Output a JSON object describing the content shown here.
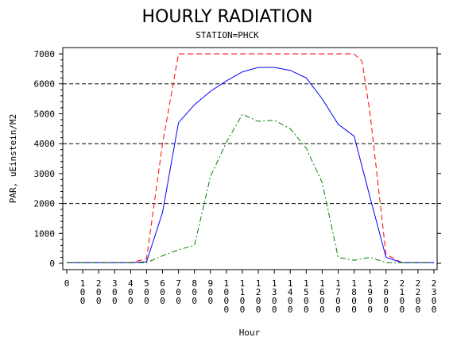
{
  "chart_data": {
    "type": "line",
    "title": "HOURLY RADIATION",
    "subtitle": "STATION=PHCK",
    "xlabel": "Hour",
    "ylabel": "PAR, uEinstein/M2",
    "xlim": [
      0,
      2300
    ],
    "ylim": [
      0,
      7000
    ],
    "x_ticks": [
      0,
      100,
      200,
      300,
      400,
      500,
      600,
      700,
      800,
      900,
      1000,
      1100,
      1200,
      1300,
      1400,
      1500,
      1600,
      1700,
      1800,
      1900,
      2000,
      2100,
      2200,
      2300
    ],
    "x_tick_labels": [
      "0",
      "100",
      "200",
      "300",
      "400",
      "500",
      "600",
      "700",
      "800",
      "900",
      "1000",
      "1100",
      "1200",
      "1300",
      "1400",
      "1500",
      "1600",
      "1700",
      "1800",
      "1900",
      "2000",
      "2100",
      "2200",
      "2300"
    ],
    "y_ticks": [
      0,
      1000,
      2000,
      3000,
      4000,
      5000,
      6000,
      7000
    ],
    "y_tick_labels": [
      "0",
      "1000",
      "2000",
      "3000",
      "4000",
      "5000",
      "6000",
      "7000"
    ],
    "reference_lines_y": [
      2000,
      4000,
      6000
    ],
    "series": [
      {
        "color": "#ff0000",
        "dash": "dashed",
        "x": [
          0,
          100,
          200,
          300,
          400,
          500,
          600,
          700,
          800,
          900,
          1000,
          1100,
          1200,
          1300,
          1400,
          1500,
          1600,
          1700,
          1800,
          1850,
          1900,
          2000,
          2100,
          2200,
          2300
        ],
        "values": [
          20,
          20,
          20,
          20,
          20,
          150,
          4000,
          7000,
          7000,
          7000,
          7000,
          7000,
          7000,
          7000,
          7000,
          7000,
          7000,
          7000,
          7000,
          6750,
          5000,
          300,
          20,
          20,
          20
        ]
      },
      {
        "color": "#0000ff",
        "dash": "solid",
        "x": [
          0,
          100,
          200,
          300,
          400,
          500,
          600,
          700,
          800,
          900,
          1000,
          1100,
          1200,
          1300,
          1400,
          1500,
          1600,
          1700,
          1800,
          1900,
          2000,
          2100,
          2200,
          2300
        ],
        "values": [
          20,
          20,
          20,
          20,
          20,
          50,
          1700,
          4700,
          5300,
          5750,
          6100,
          6400,
          6550,
          6550,
          6450,
          6200,
          5500,
          4650,
          4250,
          2200,
          200,
          20,
          20,
          20
        ]
      },
      {
        "color": "#008000",
        "dash": "dash-dot",
        "x": [
          0,
          100,
          200,
          300,
          400,
          500,
          600,
          700,
          800,
          900,
          1000,
          1100,
          1200,
          1300,
          1400,
          1500,
          1600,
          1700,
          1800,
          1900,
          2000,
          2100,
          2200,
          2300
        ],
        "values": [
          20,
          20,
          20,
          20,
          20,
          20,
          250,
          450,
          600,
          2900,
          4050,
          4980,
          4750,
          4780,
          4500,
          3850,
          2700,
          200,
          100,
          200,
          20,
          20,
          20,
          20
        ]
      }
    ]
  }
}
